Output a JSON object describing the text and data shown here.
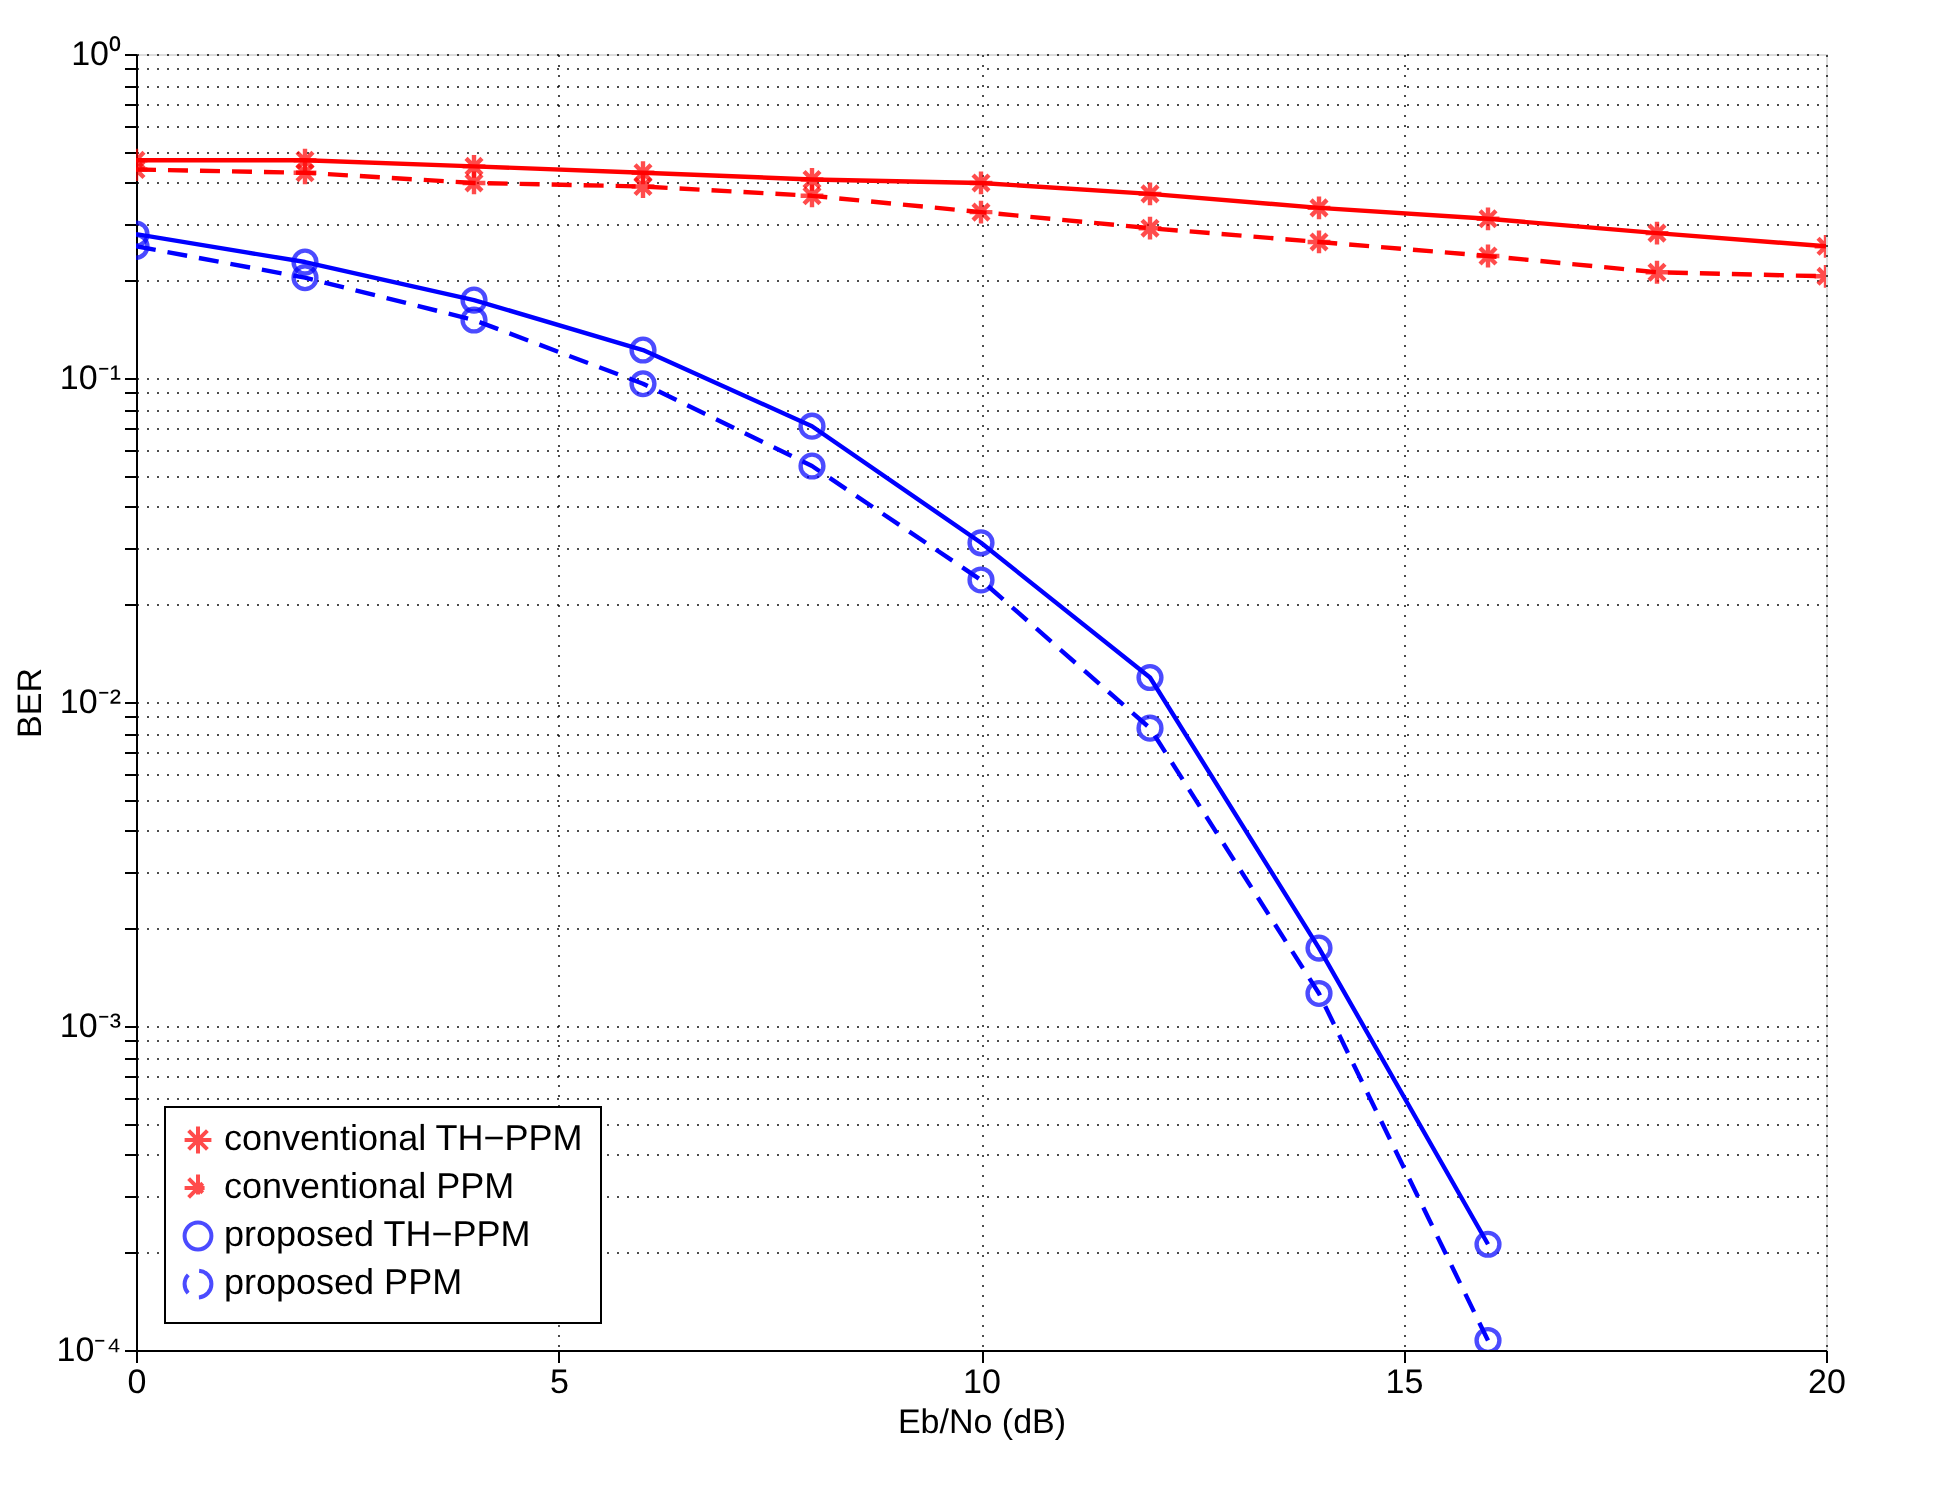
{
  "chart_data": {
    "type": "line",
    "xlabel": "Eb/No (dB)",
    "ylabel": "BER",
    "log": "y",
    "grid": true,
    "legend": "bottom left",
    "xlim": [
      0,
      20
    ],
    "xticks": [
      0,
      5,
      10,
      15,
      20
    ],
    "ylim": [
      0.0001,
      1
    ],
    "yticks": [
      {
        "value": 0.0001,
        "label": "10⁻⁴"
      },
      {
        "value": 0.0002,
        "label": null
      },
      {
        "value": 0.0003,
        "label": null
      },
      {
        "value": 0.0004,
        "label": null
      },
      {
        "value": 0.0005,
        "label": null
      },
      {
        "value": 0.0006,
        "label": null
      },
      {
        "value": 0.0007,
        "label": null
      },
      {
        "value": 0.0008,
        "label": null
      },
      {
        "value": 0.0009,
        "label": null
      },
      {
        "value": 0.001,
        "label": "10⁻³"
      },
      {
        "value": 0.002,
        "label": null
      },
      {
        "value": 0.003,
        "label": null
      },
      {
        "value": 0.004,
        "label": null
      },
      {
        "value": 0.005,
        "label": null
      },
      {
        "value": 0.006,
        "label": null
      },
      {
        "value": 0.007,
        "label": null
      },
      {
        "value": 0.008,
        "label": null
      },
      {
        "value": 0.009,
        "label": null
      },
      {
        "value": 0.01,
        "label": "10⁻²"
      },
      {
        "value": 0.02,
        "label": null
      },
      {
        "value": 0.03,
        "label": null
      },
      {
        "value": 0.04,
        "label": null
      },
      {
        "value": 0.05,
        "label": null
      },
      {
        "value": 0.06,
        "label": null
      },
      {
        "value": 0.07,
        "label": null
      },
      {
        "value": 0.08,
        "label": null
      },
      {
        "value": 0.09,
        "label": null
      },
      {
        "value": 0.1,
        "label": "10⁻¹"
      },
      {
        "value": 0.2,
        "label": null
      },
      {
        "value": 0.3,
        "label": null
      },
      {
        "value": 0.4,
        "label": null
      },
      {
        "value": 0.5,
        "label": null
      },
      {
        "value": 0.6,
        "label": null
      },
      {
        "value": 0.7,
        "label": null
      },
      {
        "value": 0.8,
        "label": null
      },
      {
        "value": 0.9,
        "label": null
      },
      {
        "value": 1,
        "label": "10⁰"
      }
    ],
    "series": [
      {
        "name": "conventional TH−PPM",
        "color": "#ff0000",
        "marker": "cross",
        "line_style": "solid",
        "x": [
          0,
          2,
          4,
          6,
          8,
          10,
          12,
          14,
          16,
          18,
          20
        ],
        "values": [
          0.47,
          0.47,
          0.45,
          0.43,
          0.41,
          0.4,
          0.37,
          0.335,
          0.31,
          0.28,
          0.255
        ]
      },
      {
        "name": "conventional PPM",
        "color": "#ff0000",
        "marker": "cross",
        "line_style": "dashed",
        "x": [
          0,
          2,
          4,
          6,
          8,
          10,
          12,
          14,
          16,
          18,
          20
        ],
        "values": [
          0.44,
          0.43,
          0.4,
          0.39,
          0.365,
          0.325,
          0.29,
          0.263,
          0.238,
          0.212,
          0.206
        ]
      },
      {
        "name": "proposed TH−PPM",
        "color": "#0000ff",
        "marker": "circle",
        "line_style": "solid",
        "x": [
          0,
          2,
          4,
          6,
          8,
          10,
          12,
          14,
          16
        ],
        "values": [
          0.278,
          0.228,
          0.174,
          0.122,
          0.071,
          0.031,
          0.0119,
          0.00174,
          0.000212
        ]
      },
      {
        "name": "proposed PPM",
        "color": "#0000ff",
        "marker": "circle",
        "line_style": "dashed",
        "x": [
          0,
          2,
          4,
          6,
          8,
          10,
          12,
          14,
          16
        ],
        "values": [
          0.255,
          0.204,
          0.151,
          0.096,
          0.0535,
          0.0238,
          0.0083,
          0.00126,
          0.000107
        ]
      }
    ]
  }
}
